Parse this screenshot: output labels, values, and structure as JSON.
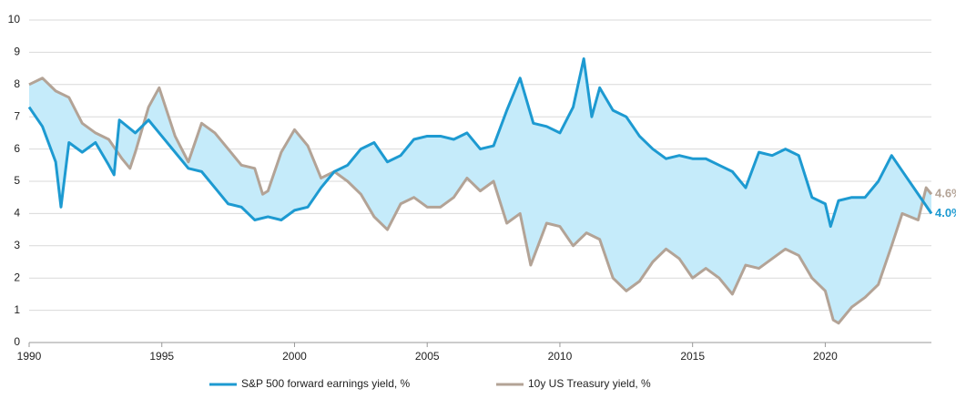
{
  "chart_data": {
    "type": "line",
    "xlim": [
      1990,
      2024
    ],
    "xticks": [
      1990,
      1995,
      2000,
      2005,
      2010,
      2015,
      2020
    ],
    "ylim": [
      0,
      10
    ],
    "yticks": [
      0,
      1,
      2,
      3,
      4,
      5,
      6,
      7,
      8,
      9,
      10
    ],
    "grid": true,
    "legend": "bottom",
    "fill_between": "#c5ebfa",
    "series": [
      {
        "name": "S&P 500 forward earnings yield, %",
        "color": "#1d9ad1",
        "end_label": "4.0%",
        "x": [
          1990.0,
          1990.5,
          1991.0,
          1991.2,
          1991.5,
          1992.0,
          1992.5,
          1993.0,
          1993.2,
          1993.4,
          1994.0,
          1994.5,
          1995.0,
          1995.5,
          1996.0,
          1996.5,
          1997.0,
          1997.5,
          1998.0,
          1998.5,
          1999.0,
          1999.5,
          2000.0,
          2000.5,
          2001.0,
          2001.5,
          2002.0,
          2002.5,
          2003.0,
          2003.5,
          2004.0,
          2004.5,
          2005.0,
          2005.5,
          2006.0,
          2006.5,
          2007.0,
          2007.5,
          2008.0,
          2008.5,
          2009.0,
          2009.5,
          2010.0,
          2010.5,
          2010.9,
          2011.2,
          2011.5,
          2012.0,
          2012.5,
          2013.0,
          2013.5,
          2014.0,
          2014.5,
          2015.0,
          2015.5,
          2016.0,
          2016.5,
          2017.0,
          2017.5,
          2018.0,
          2018.5,
          2019.0,
          2019.5,
          2020.0,
          2020.2,
          2020.5,
          2021.0,
          2021.5,
          2022.0,
          2022.5,
          2023.0,
          2023.5,
          2024.0
        ],
        "values": [
          7.3,
          6.7,
          5.6,
          4.2,
          6.2,
          5.9,
          6.2,
          5.5,
          5.2,
          6.9,
          6.5,
          6.9,
          6.4,
          5.9,
          5.4,
          5.3,
          4.8,
          4.3,
          4.2,
          3.8,
          3.9,
          3.8,
          4.1,
          4.2,
          4.8,
          5.3,
          5.5,
          6.0,
          6.2,
          5.6,
          5.8,
          6.3,
          6.4,
          6.4,
          6.3,
          6.5,
          6.0,
          6.1,
          7.2,
          8.2,
          6.8,
          6.7,
          6.5,
          7.3,
          8.8,
          7.0,
          7.9,
          7.2,
          7.0,
          6.4,
          6.0,
          5.7,
          5.8,
          5.7,
          5.7,
          5.5,
          5.3,
          4.8,
          5.9,
          5.8,
          6.0,
          5.8,
          4.5,
          4.3,
          3.6,
          4.4,
          4.5,
          4.5,
          5.0,
          5.8,
          5.2,
          4.6,
          4.0
        ]
      },
      {
        "name": "10y US Treasury yield, %",
        "color": "#b3a396",
        "end_label": "4.6%",
        "x": [
          1990.0,
          1990.5,
          1991.0,
          1991.5,
          1992.0,
          1992.5,
          1993.0,
          1993.5,
          1993.8,
          1994.0,
          1994.5,
          1994.9,
          1995.5,
          1996.0,
          1996.5,
          1997.0,
          1997.5,
          1998.0,
          1998.5,
          1998.8,
          1999.0,
          1999.5,
          2000.0,
          2000.5,
          2001.0,
          2001.5,
          2002.0,
          2002.5,
          2003.0,
          2003.5,
          2004.0,
          2004.5,
          2005.0,
          2005.5,
          2006.0,
          2006.5,
          2007.0,
          2007.5,
          2008.0,
          2008.5,
          2008.9,
          2009.5,
          2010.0,
          2010.5,
          2011.0,
          2011.5,
          2012.0,
          2012.5,
          2013.0,
          2013.5,
          2014.0,
          2014.5,
          2015.0,
          2015.5,
          2016.0,
          2016.5,
          2017.0,
          2017.5,
          2018.0,
          2018.5,
          2019.0,
          2019.5,
          2020.0,
          2020.3,
          2020.5,
          2021.0,
          2021.5,
          2022.0,
          2022.5,
          2022.9,
          2023.5,
          2023.8,
          2024.0
        ],
        "values": [
          8.0,
          8.2,
          7.8,
          7.6,
          6.8,
          6.5,
          6.3,
          5.7,
          5.4,
          5.9,
          7.3,
          7.9,
          6.4,
          5.6,
          6.8,
          6.5,
          6.0,
          5.5,
          5.4,
          4.6,
          4.7,
          5.9,
          6.6,
          6.1,
          5.1,
          5.3,
          5.0,
          4.6,
          3.9,
          3.5,
          4.3,
          4.5,
          4.2,
          4.2,
          4.5,
          5.1,
          4.7,
          5.0,
          3.7,
          4.0,
          2.4,
          3.7,
          3.6,
          3.0,
          3.4,
          3.2,
          2.0,
          1.6,
          1.9,
          2.5,
          2.9,
          2.6,
          2.0,
          2.3,
          2.0,
          1.5,
          2.4,
          2.3,
          2.6,
          2.9,
          2.7,
          2.0,
          1.6,
          0.7,
          0.6,
          1.1,
          1.4,
          1.8,
          3.0,
          4.0,
          3.8,
          4.8,
          4.6
        ]
      }
    ]
  }
}
